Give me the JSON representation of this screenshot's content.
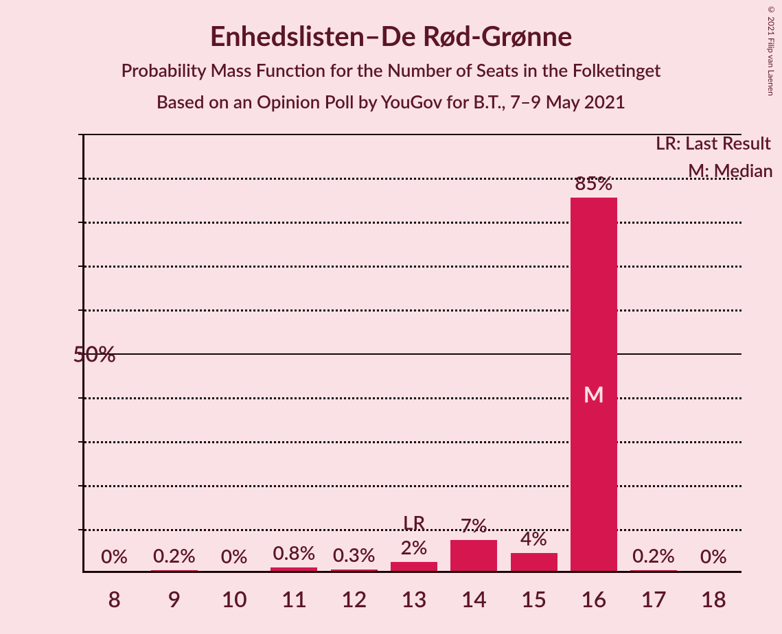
{
  "chart": {
    "type": "bar",
    "title": "Enhedslisten–De Rød-Grønne",
    "subtitle1": "Probability Mass Function for the Number of Seats in the Folketinget",
    "subtitle2": "Based on an Opinion Poll by YouGov for B.T., 7–9 May 2021",
    "copyright": "© 2021 Filip van Laenen",
    "colors": {
      "background": "#fae1e5",
      "text": "#5a1626",
      "bar": "#d6174f",
      "axis": "#1a0509",
      "grid_dotted": "#1a0509",
      "median_text": "#fae1e5"
    },
    "fonts": {
      "title_size": 40,
      "subtitle_size": 26,
      "axis_label_size": 32,
      "bar_label_size": 28,
      "legend_size": 26,
      "copyright_size": 12
    },
    "y_axis": {
      "ylim_max": 100,
      "gridlines": [
        10,
        20,
        30,
        40,
        50,
        60,
        70,
        80,
        90,
        100
      ],
      "solid_gridlines": [
        50,
        100
      ],
      "labels": {
        "50": "50%"
      }
    },
    "x_categories": [
      "8",
      "9",
      "10",
      "11",
      "12",
      "13",
      "14",
      "15",
      "16",
      "17",
      "18"
    ],
    "values": [
      0,
      0.2,
      0,
      0.8,
      0.3,
      2,
      7,
      4,
      85,
      0.2,
      0
    ],
    "bar_labels": [
      "0%",
      "0.2%",
      "0%",
      "0.8%",
      "0.3%",
      "2%",
      "7%",
      "4%",
      "85%",
      "0.2%",
      "0%"
    ],
    "bar_width_ratio": 0.78,
    "annotations": {
      "LR": {
        "index": 5,
        "text": "LR"
      },
      "M": {
        "index": 8,
        "text": "M"
      }
    },
    "legend": {
      "LR": "LR: Last Result",
      "M": "M: Median"
    }
  }
}
